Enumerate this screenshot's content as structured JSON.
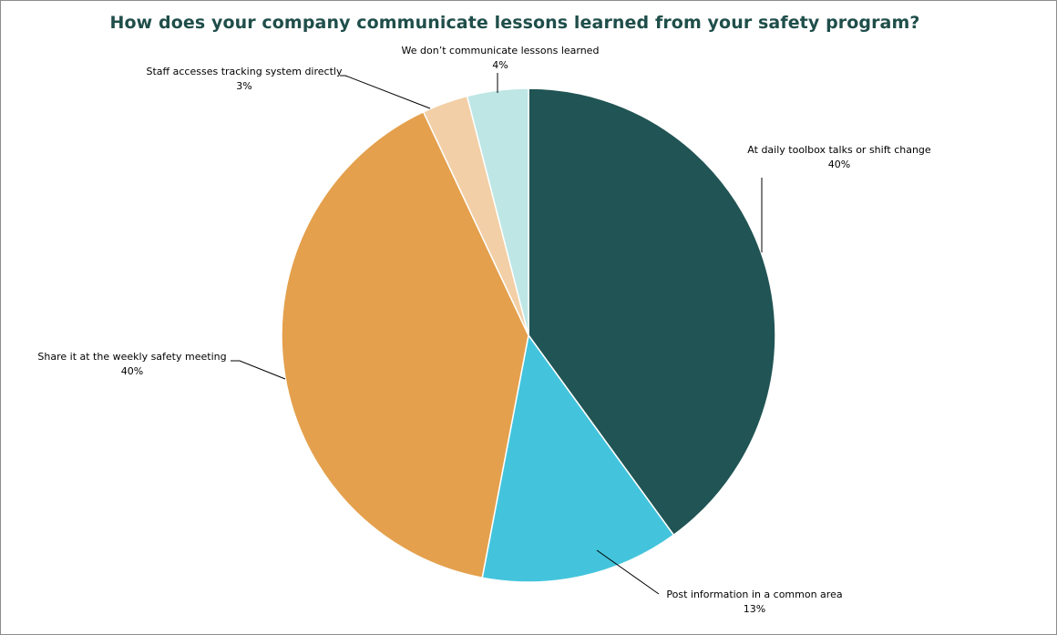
{
  "chart_data": {
    "type": "pie",
    "title": "How does your company communicate lessons learned from your safety program?",
    "slices": [
      {
        "label": "At daily toolbox talks or shift change",
        "value": 40,
        "value_label": "40%",
        "color": "#215454"
      },
      {
        "label": "Post information in a common area",
        "value": 13,
        "value_label": "13%",
        "color": "#43c4dc"
      },
      {
        "label": "Share it at the weekly safety meeting",
        "value": 40,
        "value_label": "40%",
        "color": "#e4a04c"
      },
      {
        "label": "Staff accesses tracking system directly",
        "value": 3,
        "value_label": "3%",
        "color": "#f2cfa6"
      },
      {
        "label": "We don’t communicate  lessons learned",
        "value": 4,
        "value_label": "4%",
        "color": "#bde6e5"
      }
    ],
    "start_angle": "12 o'clock",
    "direction": "clockwise",
    "legend": "none",
    "labels": "outside with leader lines"
  }
}
